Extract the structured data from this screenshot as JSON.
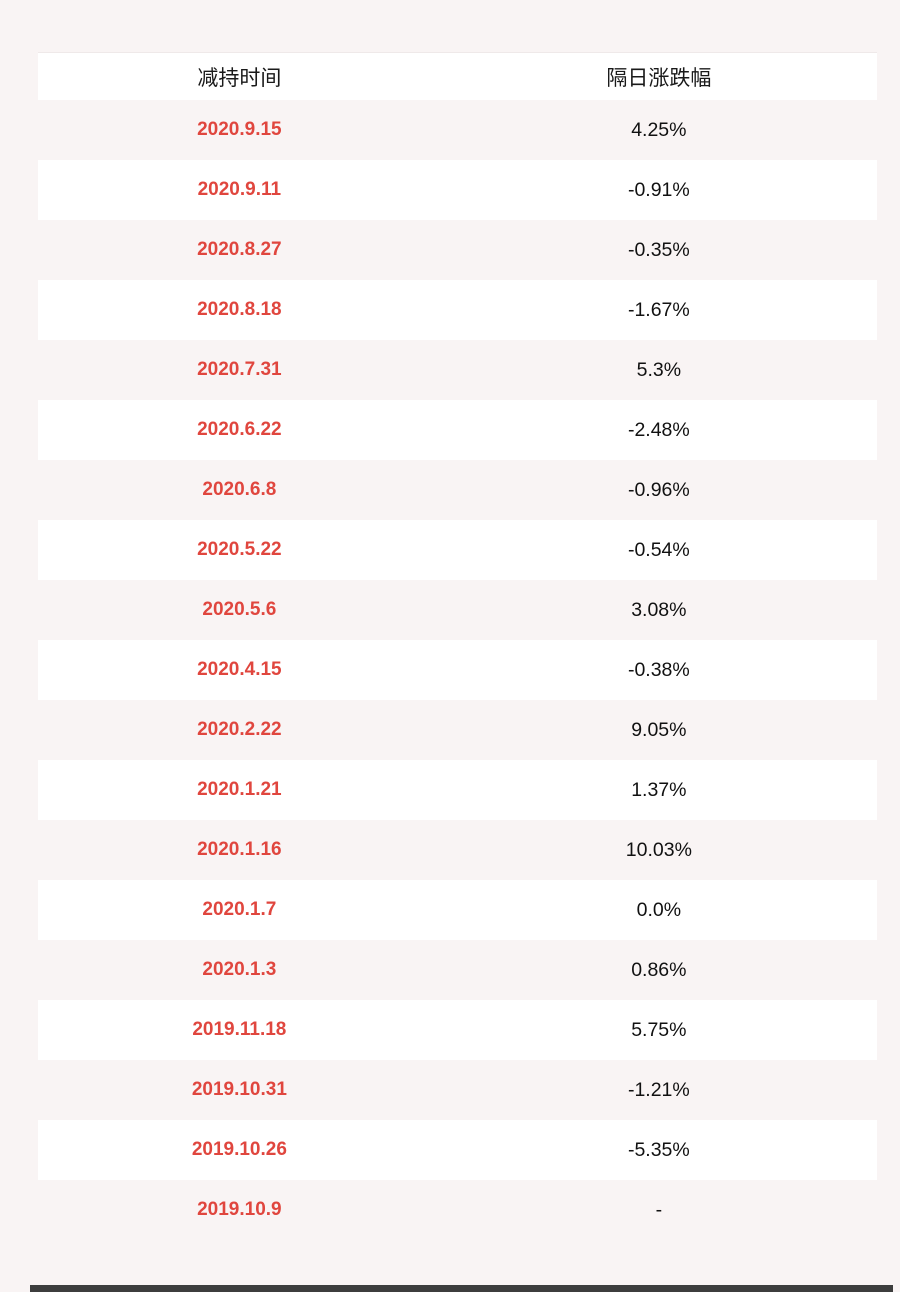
{
  "table": {
    "headers": {
      "date_label": "减持时间",
      "change_label": "隔日涨跌幅"
    },
    "rows": [
      {
        "date": "2020.9.15",
        "change": "4.25%"
      },
      {
        "date": "2020.9.11",
        "change": "-0.91%"
      },
      {
        "date": "2020.8.27",
        "change": "-0.35%"
      },
      {
        "date": "2020.8.18",
        "change": "-1.67%"
      },
      {
        "date": "2020.7.31",
        "change": "5.3%"
      },
      {
        "date": "2020.6.22",
        "change": "-2.48%"
      },
      {
        "date": "2020.6.8",
        "change": "-0.96%"
      },
      {
        "date": "2020.5.22",
        "change": "-0.54%"
      },
      {
        "date": "2020.5.6",
        "change": "3.08%"
      },
      {
        "date": "2020.4.15",
        "change": "-0.38%"
      },
      {
        "date": "2020.2.22",
        "change": "9.05%"
      },
      {
        "date": "2020.1.21",
        "change": "1.37%"
      },
      {
        "date": "2020.1.16",
        "change": "10.03%"
      },
      {
        "date": "2020.1.7",
        "change": "0.0%"
      },
      {
        "date": "2020.1.3",
        "change": "0.86%"
      },
      {
        "date": "2019.11.18",
        "change": "5.75%"
      },
      {
        "date": "2019.10.31",
        "change": "-1.21%"
      },
      {
        "date": "2019.10.26",
        "change": "-5.35%"
      },
      {
        "date": "2019.10.9",
        "change": "-"
      }
    ]
  },
  "colors": {
    "page_bg": "#f9f4f4",
    "row_pink_bg": "#f9f4f4",
    "row_white_bg": "#ffffff",
    "date_text": "#e0463e",
    "value_text": "#111111",
    "header_text": "#1a1a1a",
    "footer_bar": "#3d3d3d"
  },
  "chart_data": {
    "type": "table",
    "title": "",
    "columns": [
      "减持时间",
      "隔日涨跌幅"
    ],
    "rows": [
      [
        "2020.9.15",
        "4.25%"
      ],
      [
        "2020.9.11",
        "-0.91%"
      ],
      [
        "2020.8.27",
        "-0.35%"
      ],
      [
        "2020.8.18",
        "-1.67%"
      ],
      [
        "2020.7.31",
        "5.3%"
      ],
      [
        "2020.6.22",
        "-2.48%"
      ],
      [
        "2020.6.8",
        "-0.96%"
      ],
      [
        "2020.5.22",
        "-0.54%"
      ],
      [
        "2020.5.6",
        "3.08%"
      ],
      [
        "2020.4.15",
        "-0.38%"
      ],
      [
        "2020.2.22",
        "9.05%"
      ],
      [
        "2020.1.21",
        "1.37%"
      ],
      [
        "2020.1.16",
        "10.03%"
      ],
      [
        "2020.1.7",
        "0.0%"
      ],
      [
        "2020.1.3",
        "0.86%"
      ],
      [
        "2019.11.18",
        "5.75%"
      ],
      [
        "2019.10.31",
        "-1.21%"
      ],
      [
        "2019.10.26",
        "-5.35%"
      ],
      [
        "2019.10.9",
        "-"
      ]
    ],
    "layout_hints": {
      "alternating_row_colors": [
        "#f9f4f4",
        "#ffffff"
      ],
      "header_background": "#ffffff",
      "date_column_color": "#e0463e",
      "grid": false
    }
  }
}
